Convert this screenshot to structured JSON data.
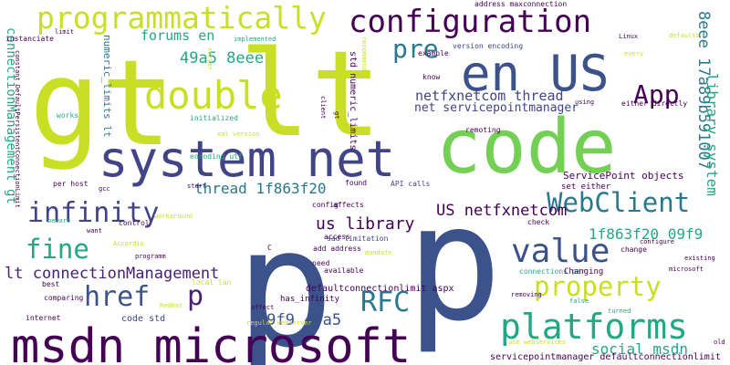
{
  "palette": {
    "lime": "#c8df25",
    "green": "#74d055",
    "teal": "#22a884",
    "cyan": "#2a788e",
    "blue": "#3b528b",
    "indigo": "#414487",
    "purple": "#440154",
    "darkpurple": "#482173"
  },
  "words": [
    {
      "text": "gt",
      "color": "lime"
    },
    {
      "text": "lt",
      "color": "lime"
    },
    {
      "text": "p",
      "color": "blue"
    },
    {
      "text": "p",
      "color": "blue"
    },
    {
      "text": "code",
      "color": "green"
    },
    {
      "text": "system net",
      "color": "indigo"
    },
    {
      "text": "msdn microsoft",
      "color": "purple"
    },
    {
      "text": "configuration",
      "color": "purple"
    },
    {
      "text": "en US",
      "color": "blue"
    },
    {
      "text": "programmatically",
      "color": "lime"
    },
    {
      "text": "double",
      "color": "lime"
    },
    {
      "text": "App",
      "color": "purple"
    },
    {
      "text": "pre",
      "color": "cyan"
    },
    {
      "text": "value",
      "color": "blue"
    },
    {
      "text": "platforms",
      "color": "teal"
    },
    {
      "text": "WebClient",
      "color": "cyan"
    },
    {
      "text": "property",
      "color": "lime"
    },
    {
      "text": "infinity",
      "color": "indigo"
    },
    {
      "text": "fine",
      "color": "teal"
    },
    {
      "text": "href",
      "color": "blue"
    },
    {
      "text": "RFC",
      "color": "cyan"
    },
    {
      "text": "p",
      "color": "darkpurple"
    },
    {
      "text": "lt connectionManagement",
      "color": "darkpurple"
    },
    {
      "text": "netfxnetcom thread",
      "color": "indigo"
    },
    {
      "text": "net servicepointmanager",
      "color": "indigo"
    },
    {
      "text": "US netfxnetcom",
      "color": "purple"
    },
    {
      "text": "thread 1f863f20",
      "color": "cyan"
    },
    {
      "text": "1f863f20 09f9",
      "color": "teal"
    },
    {
      "text": "09f9 49a5",
      "color": "blue"
    },
    {
      "text": "49a5 8eee",
      "color": "teal"
    },
    {
      "text": "forums en",
      "color": "teal"
    },
    {
      "text": "us library",
      "color": "purple"
    },
    {
      "text": "social msdn",
      "color": "teal"
    },
    {
      "text": "8eee 17a89b591007",
      "color": "cyan"
    },
    {
      "text": "library system",
      "color": "teal"
    },
    {
      "text": "connectionManagement gt",
      "color": "teal"
    },
    {
      "text": "numeric_limits lt",
      "color": "cyan"
    },
    {
      "text": "std numeric_limits",
      "color": "purple"
    },
    {
      "text": "ServicePoint objects",
      "color": "purple"
    },
    {
      "text": "servicepointmanager defaultconnectionlimit",
      "color": "purple"
    },
    {
      "text": "defaultconnectionlimit aspx",
      "color": "purple"
    },
    {
      "text": "code std",
      "color": "indigo"
    },
    {
      "text": "has_infinity",
      "color": "purple"
    },
    {
      "text": "sad limitation",
      "color": "indigo"
    },
    {
      "text": "add address",
      "color": "purple"
    },
    {
      "text": "address maxconnection",
      "color": "purple"
    },
    {
      "text": "version encoding",
      "color": "indigo"
    },
    {
      "text": "encoding utf",
      "color": "teal"
    },
    {
      "text": "xml version",
      "color": "lime"
    },
    {
      "text": "regular webserver",
      "color": "lime"
    },
    {
      "text": "use webservices",
      "color": "lime"
    },
    {
      "text": "set either",
      "color": "purple"
    },
    {
      "text": "either directly",
      "color": "purple"
    },
    {
      "text": "API calls",
      "color": "indigo"
    },
    {
      "text": "connections per",
      "color": "teal"
    },
    {
      "text": "Changing",
      "color": "purple"
    },
    {
      "text": "per host",
      "color": "purple"
    },
    {
      "text": "local lan",
      "color": "lime"
    },
    {
      "text": "instanciate",
      "color": "purple"
    },
    {
      "text": "constant DefaultPersistentConnectionLimit",
      "color": "purple"
    },
    {
      "text": "limit",
      "color": "purple"
    },
    {
      "text": "works",
      "color": "teal"
    },
    {
      "text": "implemented",
      "color": "teal"
    },
    {
      "text": "initialized",
      "color": "teal"
    },
    {
      "text": "server",
      "color": "lime"
    },
    {
      "text": "client",
      "color": "purple"
    },
    {
      "text": "recommend",
      "color": "lime"
    },
    {
      "text": "found",
      "color": "purple"
    },
    {
      "text": "example",
      "color": "purple"
    },
    {
      "text": "know",
      "color": "purple"
    },
    {
      "text": "using",
      "color": "purple"
    },
    {
      "text": "remoting",
      "color": "purple"
    },
    {
      "text": "Linux",
      "color": "purple"
    },
    {
      "text": "defaults",
      "color": "lime"
    },
    {
      "text": "every",
      "color": "lime"
    },
    {
      "text": "need",
      "color": "purple"
    },
    {
      "text": "available",
      "color": "purple"
    },
    {
      "text": "access",
      "color": "purple"
    },
    {
      "text": "mandate",
      "color": "lime"
    },
    {
      "text": "config",
      "color": "purple"
    },
    {
      "text": "affects",
      "color": "purple"
    },
    {
      "text": "check",
      "color": "purple"
    },
    {
      "text": "configure",
      "color": "purple"
    },
    {
      "text": "change",
      "color": "purple"
    },
    {
      "text": "existing",
      "color": "purple"
    },
    {
      "text": "microsoft",
      "color": "purple"
    },
    {
      "text": "removing",
      "color": "purple"
    },
    {
      "text": "false",
      "color": "teal"
    },
    {
      "text": "turned",
      "color": "teal"
    },
    {
      "text": "old",
      "color": "purple"
    },
    {
      "text": "gcc",
      "color": "purple"
    },
    {
      "text": "start",
      "color": "purple"
    },
    {
      "text": "workaround",
      "color": "lime"
    },
    {
      "text": "beware",
      "color": "teal"
    },
    {
      "text": "want",
      "color": "purple"
    },
    {
      "text": "control",
      "color": "purple"
    },
    {
      "text": "Accordin",
      "color": "lime"
    },
    {
      "text": "programm",
      "color": "purple"
    },
    {
      "text": "best",
      "color": "purple"
    },
    {
      "text": "comparing",
      "color": "purple"
    },
    {
      "text": "internet",
      "color": "purple"
    },
    {
      "text": "RedHat",
      "color": "lime"
    },
    {
      "text": "affect",
      "color": "purple"
    },
    {
      "text": "C",
      "color": "purple"
    },
    {
      "text": "gt",
      "color": "purple"
    }
  ]
}
